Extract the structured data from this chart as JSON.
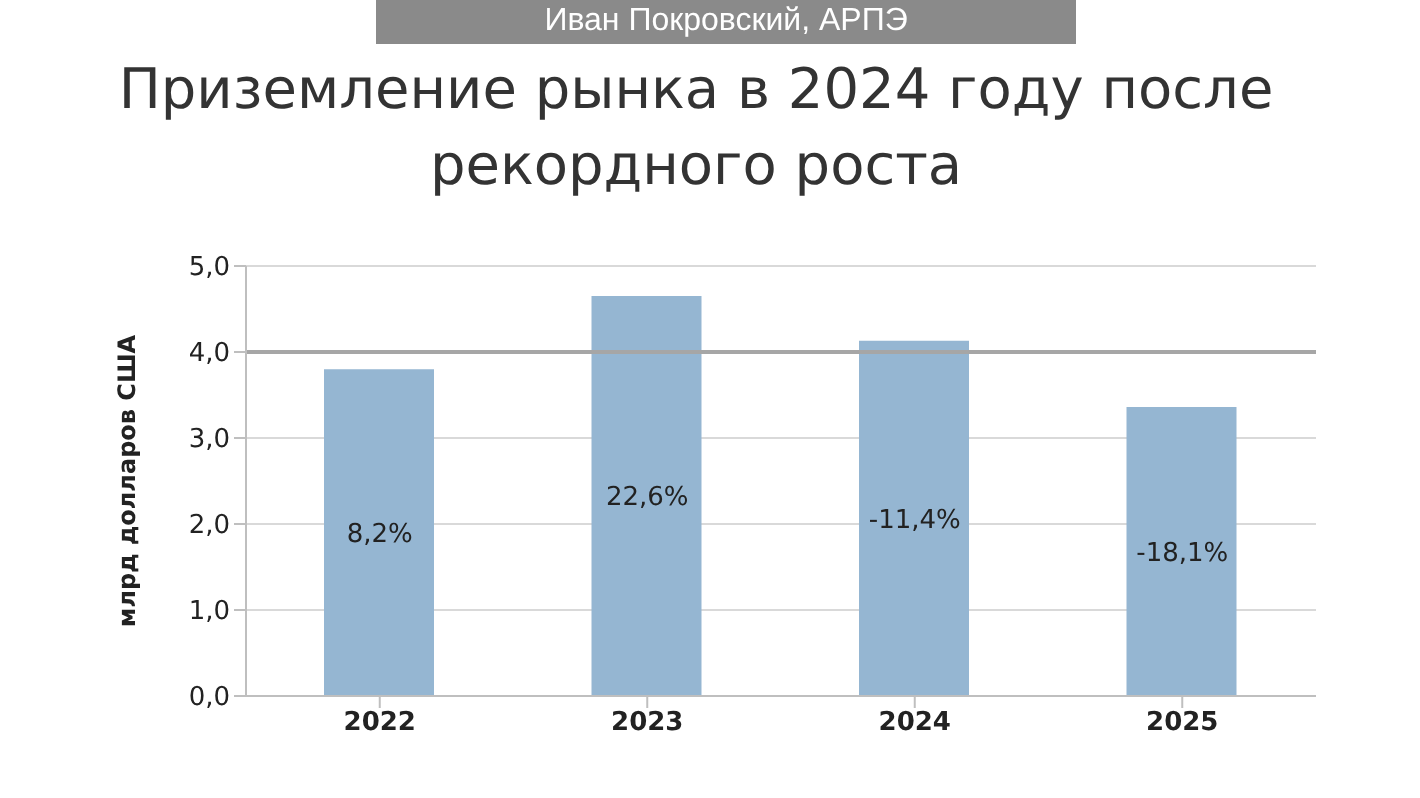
{
  "chart_data": {
    "type": "bar",
    "title": "Приземление рынка в 2024 году после рекордного роста",
    "ylabel": "млрд долларов США",
    "annotations": [
      "Иван Покровский, АРПЭ",
      "8,2%",
      "22,6%",
      "-11,4%",
      "-18,1%"
    ],
    "categories": [
      "2022",
      "2023",
      "2024",
      "2025"
    ],
    "series": [
      {
        "color": "#95b6d2",
        "values": [
          3.8,
          4.65,
          4.13,
          3.36
        ]
      }
    ],
    "ylim": [
      0,
      5
    ],
    "yticks": [
      {
        "value": 0,
        "label": "0,0"
      },
      {
        "value": 1,
        "label": "1,0"
      },
      {
        "value": 2,
        "label": "2,0"
      },
      {
        "value": 3,
        "label": "3,0"
      },
      {
        "value": 4,
        "label": "4,0"
      },
      {
        "value": 5,
        "label": "5,0"
      }
    ],
    "grid": "y",
    "ref_lines": [
      {
        "axis": "y",
        "value": 4,
        "color": "#a6a6a6"
      }
    ]
  }
}
